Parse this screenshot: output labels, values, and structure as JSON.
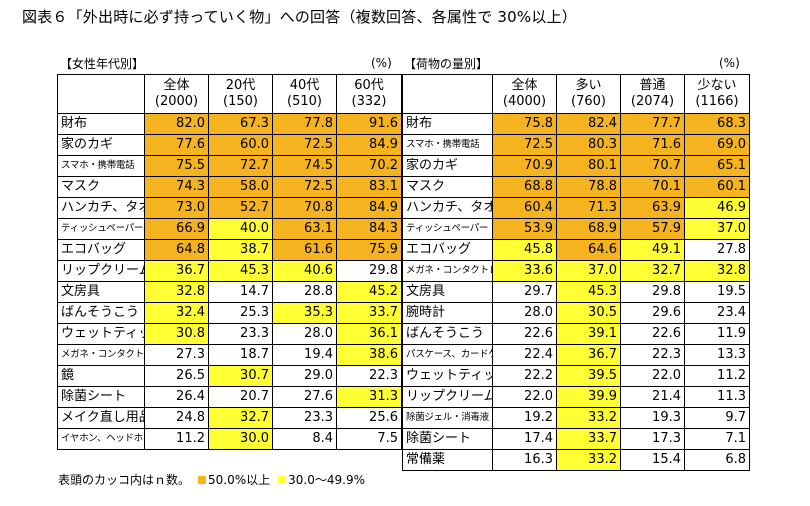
{
  "title": "図表６「外出時に必ず持っていく物」への回答（複数回答、各属性で 30%以上）",
  "colors": {
    "orange": "#f5b320",
    "yellow": "#ffff33"
  },
  "left": {
    "name": "【女性年代別】",
    "unit": "(%)",
    "cols": [
      [
        "全体",
        "(2000)"
      ],
      [
        "20代",
        "(150)"
      ],
      [
        "40代",
        "(510)"
      ],
      [
        "60代",
        "(332)"
      ]
    ],
    "rows": [
      {
        "label": "財布",
        "small": false,
        "vals": [
          "82.0",
          "67.3",
          "77.8",
          "91.6"
        ],
        "cls": [
          "o",
          "o",
          "o",
          "o"
        ]
      },
      {
        "label": "家のカギ",
        "small": false,
        "vals": [
          "77.6",
          "60.0",
          "72.5",
          "84.9"
        ],
        "cls": [
          "o",
          "o",
          "o",
          "o"
        ]
      },
      {
        "label": "スマホ・携帯電話",
        "small": true,
        "vals": [
          "75.5",
          "72.7",
          "74.5",
          "70.2"
        ],
        "cls": [
          "o",
          "o",
          "o",
          "o"
        ]
      },
      {
        "label": "マスク",
        "small": false,
        "vals": [
          "74.3",
          "58.0",
          "72.5",
          "83.1"
        ],
        "cls": [
          "o",
          "o",
          "o",
          "o"
        ]
      },
      {
        "label": "ハンカチ、タオル",
        "small": false,
        "vals": [
          "73.0",
          "52.7",
          "70.8",
          "84.9"
        ],
        "cls": [
          "o",
          "o",
          "o",
          "o"
        ]
      },
      {
        "label": "ティッシュペーパー",
        "small": true,
        "vals": [
          "66.9",
          "40.0",
          "63.1",
          "84.3"
        ],
        "cls": [
          "o",
          "y",
          "o",
          "o"
        ]
      },
      {
        "label": "エコバッグ",
        "small": false,
        "vals": [
          "64.8",
          "38.7",
          "61.6",
          "75.9"
        ],
        "cls": [
          "o",
          "y",
          "o",
          "o"
        ]
      },
      {
        "label": "リップクリーム",
        "small": false,
        "vals": [
          "36.7",
          "45.3",
          "40.6",
          "29.8"
        ],
        "cls": [
          "y",
          "y",
          "y",
          ""
        ]
      },
      {
        "label": "文房具",
        "small": false,
        "vals": [
          "32.8",
          "14.7",
          "28.8",
          "45.2"
        ],
        "cls": [
          "y",
          "",
          "",
          "y"
        ]
      },
      {
        "label": "ばんそうこう",
        "small": false,
        "vals": [
          "32.4",
          "25.3",
          "35.3",
          "33.7"
        ],
        "cls": [
          "y",
          "",
          "y",
          "y"
        ]
      },
      {
        "label": "ウェットティッシュ",
        "small": false,
        "vals": [
          "30.8",
          "23.3",
          "28.0",
          "36.1"
        ],
        "cls": [
          "y",
          "",
          "",
          "y"
        ]
      },
      {
        "label": "メガネ・コンタクトレンズ",
        "small": true,
        "vals": [
          "27.3",
          "18.7",
          "19.4",
          "38.6"
        ],
        "cls": [
          "",
          "",
          "",
          "y"
        ]
      },
      {
        "label": "鏡",
        "small": false,
        "vals": [
          "26.5",
          "30.7",
          "29.0",
          "22.3"
        ],
        "cls": [
          "",
          "y",
          "",
          ""
        ]
      },
      {
        "label": "除菌シート",
        "small": false,
        "vals": [
          "26.4",
          "20.7",
          "27.6",
          "31.3"
        ],
        "cls": [
          "",
          "",
          "",
          "y"
        ]
      },
      {
        "label": "メイク直し用品",
        "small": false,
        "vals": [
          "24.8",
          "32.7",
          "23.3",
          "25.6"
        ],
        "cls": [
          "",
          "y",
          "",
          ""
        ]
      },
      {
        "label": "イヤホン、ヘッドホン",
        "small": true,
        "vals": [
          "11.2",
          "30.0",
          "8.4",
          "7.5"
        ],
        "cls": [
          "",
          "y",
          "",
          ""
        ]
      }
    ]
  },
  "right": {
    "name": "【荷物の量別】",
    "unit": "(%)",
    "cols": [
      [
        "全体",
        "(4000)"
      ],
      [
        "多い",
        "(760)"
      ],
      [
        "普通",
        "(2074)"
      ],
      [
        "少ない",
        "(1166)"
      ]
    ],
    "rows": [
      {
        "label": "財布",
        "small": false,
        "vals": [
          "75.8",
          "82.4",
          "77.7",
          "68.3"
        ],
        "cls": [
          "o",
          "o",
          "o",
          "o"
        ]
      },
      {
        "label": "スマホ・携帯電話",
        "small": true,
        "vals": [
          "72.5",
          "80.3",
          "71.6",
          "69.0"
        ],
        "cls": [
          "o",
          "o",
          "o",
          "o"
        ]
      },
      {
        "label": "家のカギ",
        "small": false,
        "vals": [
          "70.9",
          "80.1",
          "70.7",
          "65.1"
        ],
        "cls": [
          "o",
          "o",
          "o",
          "o"
        ]
      },
      {
        "label": "マスク",
        "small": false,
        "vals": [
          "68.8",
          "78.8",
          "70.1",
          "60.1"
        ],
        "cls": [
          "o",
          "o",
          "o",
          "o"
        ]
      },
      {
        "label": "ハンカチ、タオル",
        "small": false,
        "vals": [
          "60.4",
          "71.3",
          "63.9",
          "46.9"
        ],
        "cls": [
          "o",
          "o",
          "o",
          "y"
        ]
      },
      {
        "label": "ティッシュペーパー",
        "small": true,
        "vals": [
          "53.9",
          "68.9",
          "57.9",
          "37.0"
        ],
        "cls": [
          "o",
          "o",
          "o",
          "y"
        ]
      },
      {
        "label": "エコバッグ",
        "small": false,
        "vals": [
          "45.8",
          "64.6",
          "49.1",
          "27.8"
        ],
        "cls": [
          "y",
          "o",
          "y",
          ""
        ]
      },
      {
        "label": "メガネ・コンタクトレンズ",
        "small": true,
        "vals": [
          "33.6",
          "37.0",
          "32.7",
          "32.8"
        ],
        "cls": [
          "y",
          "y",
          "y",
          "y"
        ]
      },
      {
        "label": "文房具",
        "small": false,
        "vals": [
          "29.7",
          "45.3",
          "29.8",
          "19.5"
        ],
        "cls": [
          "",
          "y",
          "",
          ""
        ]
      },
      {
        "label": "腕時計",
        "small": false,
        "vals": [
          "28.0",
          "30.5",
          "29.6",
          "23.4"
        ],
        "cls": [
          "",
          "y",
          "",
          ""
        ]
      },
      {
        "label": "ばんそうこう",
        "small": false,
        "vals": [
          "22.6",
          "39.1",
          "22.6",
          "11.9"
        ],
        "cls": [
          "",
          "y",
          "",
          ""
        ]
      },
      {
        "label": "パスケース、カードケース",
        "small": true,
        "vals": [
          "22.4",
          "36.7",
          "22.3",
          "13.3"
        ],
        "cls": [
          "",
          "y",
          "",
          ""
        ]
      },
      {
        "label": "ウェットティッシュ",
        "small": false,
        "vals": [
          "22.2",
          "39.5",
          "22.0",
          "11.2"
        ],
        "cls": [
          "",
          "y",
          "",
          ""
        ]
      },
      {
        "label": "リップクリーム",
        "small": false,
        "vals": [
          "22.0",
          "39.9",
          "21.4",
          "11.3"
        ],
        "cls": [
          "",
          "y",
          "",
          ""
        ]
      },
      {
        "label": "除菌ジェル・消毒液",
        "small": true,
        "vals": [
          "19.2",
          "33.2",
          "19.3",
          "9.7"
        ],
        "cls": [
          "",
          "y",
          "",
          ""
        ]
      },
      {
        "label": "除菌シート",
        "small": false,
        "vals": [
          "17.4",
          "33.7",
          "17.3",
          "7.1"
        ],
        "cls": [
          "",
          "y",
          "",
          ""
        ]
      },
      {
        "label": "常備薬",
        "small": false,
        "vals": [
          "16.3",
          "33.2",
          "15.4",
          "6.8"
        ],
        "cls": [
          "",
          "y",
          "",
          ""
        ]
      }
    ]
  },
  "legend": {
    "note": "表頭のカッコ内はｎ数。",
    "orange_label": "50.0%以上",
    "yellow_label": "30.0～49.9%"
  }
}
